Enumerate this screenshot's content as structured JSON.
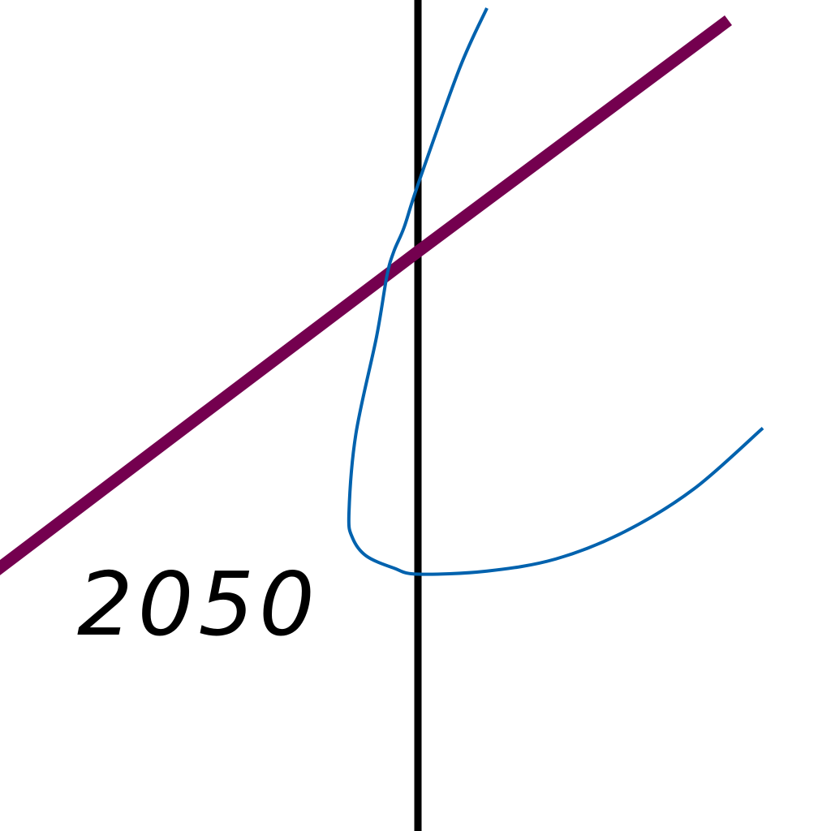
{
  "chart_data": {
    "type": "line",
    "annotations": [
      "2050"
    ],
    "series": [
      {
        "role": "straight-line",
        "color": "#74004f",
        "x": [
          -0.7,
          0,
          0.45
        ],
        "y": [
          -0.6,
          0,
          0.38
        ]
      },
      {
        "role": "looping-curve",
        "color": "#0062ae",
        "x": [
          0.1,
          0.06,
          0.0,
          -0.02,
          -0.035,
          -0.045,
          -0.06,
          -0.09,
          -0.1,
          -0.095,
          -0.075,
          -0.035,
          0.0,
          0.1,
          0.2,
          0.3,
          0.4,
          0.5
        ],
        "y": [
          0.4,
          0.3,
          0.11,
          0.04,
          0.0,
          -0.04,
          -0.14,
          -0.3,
          -0.43,
          -0.47,
          -0.5,
          -0.52,
          -0.53,
          -0.525,
          -0.505,
          -0.46,
          -0.39,
          -0.29
        ]
      }
    ],
    "reference_line": {
      "orientation": "vertical",
      "x": 0,
      "color": "#000000"
    },
    "grid": false,
    "legend": "none"
  }
}
